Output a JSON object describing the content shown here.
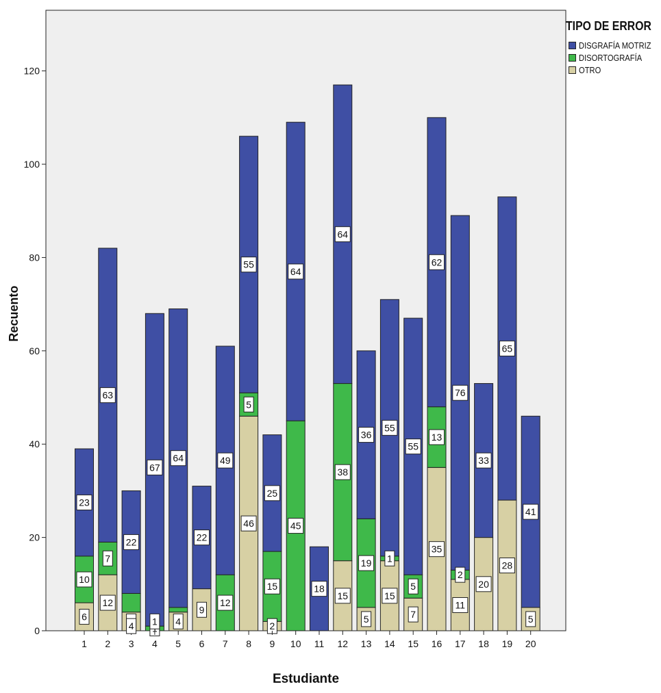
{
  "chart_data": {
    "type": "bar",
    "stacked": true,
    "xlabel": "Estudiante",
    "ylabel": "Recuento",
    "ylim": [
      0,
      133
    ],
    "yticks": [
      0,
      20,
      40,
      60,
      80,
      100,
      120
    ],
    "categories": [
      "1",
      "2",
      "3",
      "4",
      "5",
      "6",
      "7",
      "8",
      "9",
      "10",
      "11",
      "12",
      "13",
      "14",
      "15",
      "16",
      "17",
      "18",
      "19",
      "20"
    ],
    "legend": {
      "title": "TIPO DE ERROR",
      "position": "top-right"
    },
    "series": [
      {
        "name": "OTRO",
        "color": "#d7d0a4",
        "values": [
          6,
          12,
          4,
          0,
          4,
          9,
          0,
          46,
          2,
          0,
          0,
          15,
          5,
          15,
          7,
          35,
          11,
          20,
          28,
          5
        ],
        "labels": [
          "6",
          "12",
          "4",
          "",
          "4",
          "9",
          "",
          "46",
          "2",
          "",
          "",
          "15",
          "5",
          "15",
          "7",
          "35",
          "11",
          "20",
          "28",
          "5"
        ]
      },
      {
        "name": "DISORTOGRAFÍA",
        "color": "#3fb94a",
        "values": [
          10,
          7,
          4,
          1,
          1,
          0,
          12,
          5,
          15,
          45,
          0,
          38,
          19,
          1,
          5,
          13,
          2,
          0,
          0,
          0
        ],
        "labels": [
          "10",
          "7",
          "",
          "1",
          "",
          "",
          "12",
          "5",
          "15",
          "45",
          "",
          "38",
          "19",
          "1",
          "5",
          "13",
          "2",
          "",
          "",
          ""
        ]
      },
      {
        "name": "DISGRAFÍA MOTRIZ",
        "color": "#3f4fa4",
        "values": [
          23,
          63,
          22,
          67,
          64,
          22,
          49,
          55,
          25,
          64,
          18,
          64,
          36,
          55,
          55,
          62,
          76,
          33,
          65,
          41
        ],
        "labels": [
          "23",
          "63",
          "22",
          "",
          "64",
          "22",
          "49",
          "55",
          "25",
          "64",
          "18",
          "64",
          "36",
          "55",
          "55",
          "62",
          "76",
          "33",
          "65",
          "41"
        ]
      }
    ],
    "extra_labels": [
      {
        "category": "4",
        "text": "67"
      },
      {
        "category": "3",
        "text": "4"
      },
      {
        "category": "4",
        "text": "1",
        "at": "top-of-blue"
      }
    ]
  },
  "legend_items": [
    {
      "name": "DISGRAFÍA MOTRIZ",
      "color": "#3f4fa4"
    },
    {
      "name": "DISORTOGRAFÍA",
      "color": "#3fb94a"
    },
    {
      "name": "OTRO",
      "color": "#d7d0a4"
    }
  ]
}
